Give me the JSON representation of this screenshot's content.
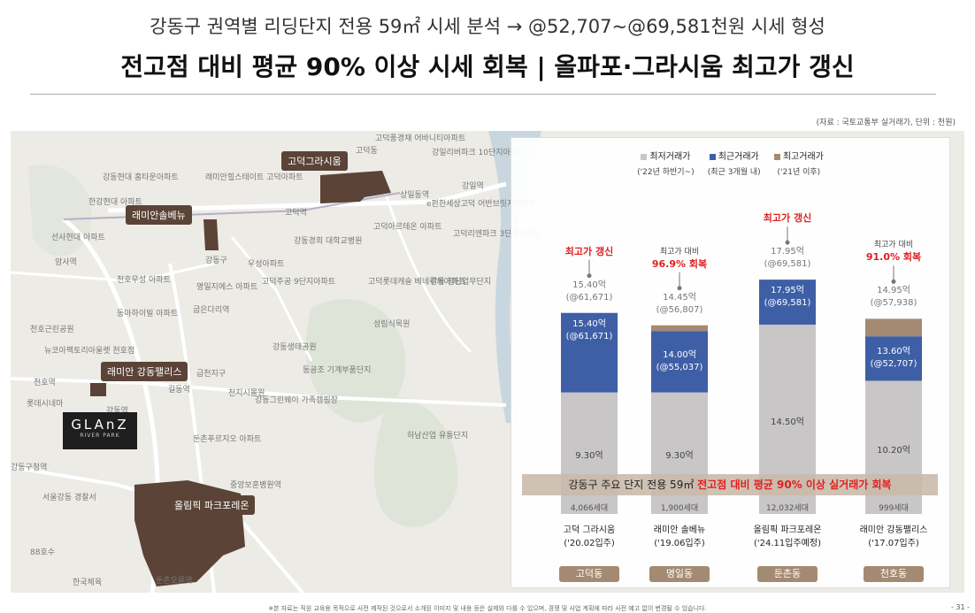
{
  "header": {
    "subtitle": "강동구 권역별 리딩단지 전용 59㎡ 시세 분석 → @52,707~@69,581천원 시세 형성",
    "title": "전고점 대비 평균 90% 이상 시세 회복 | 올파포·그라시움 최고가 갱신"
  },
  "source": "(자료 : 국토교통부 실거래가, 단위 : 천원)",
  "map": {
    "tags": [
      "고덕그라시움",
      "래미안솔베뉴",
      "래미안 강동팰리스",
      "올림픽 파크포레온"
    ],
    "logo": {
      "name": "GLAnZ",
      "sub": "RIVER PARK"
    },
    "place_labels": [
      "고덕동",
      "고덕풍경채 어바니티아파트",
      "강일리버파크 10단지아파트",
      "래미안힐스테이트 고덕아파트",
      "강동현대 홈타운아파트",
      "한강현대 아파트",
      "고덕역",
      "상일동역",
      "강일역",
      "e편한세상고덕 어반브릿지아파트",
      "고덕아르테온 아파트",
      "고덕리엔파크 3단지아파트",
      "선사현대 아파트",
      "암사역",
      "강동구",
      "우성아파트",
      "강동경희 대학교병원",
      "천호우성 아파트",
      "명일지에스 아파트",
      "고덕주공 9단지아파트",
      "고덕롯데캐슬 베네루체아파트",
      "강동 첨단업무단지",
      "동아하이빌 아파트",
      "굽은다리역",
      "천호근린공원",
      "성림식목원",
      "뉴코아팩토리아울렛 천호점",
      "강동생태공원",
      "천호역",
      "급천지구",
      "천지시몰원",
      "동공조 기계부품단지",
      "롯데시네마",
      "강동역",
      "길동역",
      "강동그린웨이 가족캠핑장",
      "둔촌푸르지오 아파트",
      "하남산업 유통단지",
      "강동구청역",
      "중앙보훈병원역",
      "서울강동 경찰서",
      "88호수",
      "한국체육",
      "둔촌오륜역"
    ],
    "colors": {
      "tag": "#5b4337",
      "block": "#5b4337",
      "river": "#c8d7df"
    }
  },
  "chart_data": {
    "type": "bar",
    "stacked": true,
    "unit": "억",
    "legend": [
      {
        "name": "최저거래가",
        "period": "('22년 하반기~)",
        "color": "#c8c6c6"
      },
      {
        "name": "최근거래가",
        "period": "(최근 3개월 내)",
        "color": "#3e5fa6"
      },
      {
        "name": "최고거래가",
        "period": "('21년 이후)",
        "color": "#a48a72"
      }
    ],
    "categories": [
      "고덕 그라시움",
      "래미안 솔베뉴",
      "올림픽 파크포레온",
      "래미안 강동팰리스"
    ],
    "category_labels": [
      {
        "name": "고덕 그라시움",
        "move_in": "('20.02입주)",
        "dong": "고덕동",
        "households": "4,066세대"
      },
      {
        "name": "래미안 솔베뉴",
        "move_in": "('19.06입주)",
        "dong": "명일동",
        "households": "1,900세대"
      },
      {
        "name": "올림픽 파크포레온",
        "move_in": "('24.11입주예정)",
        "dong": "둔촌동",
        "households": "12,032세대"
      },
      {
        "name": "래미안 강동팰리스",
        "move_in": "('17.07입주)",
        "dong": "천호동",
        "households": "999세대"
      }
    ],
    "lowest": [
      9.3,
      9.3,
      14.5,
      10.2
    ],
    "recent": [
      15.4,
      14.0,
      17.95,
      13.6
    ],
    "highest": [
      15.4,
      14.45,
      17.95,
      14.95
    ],
    "lowest_labels": [
      "9.30억",
      "9.30억",
      "14.50억",
      "10.20억"
    ],
    "recent_labels": [
      {
        "price": "15.40억",
        "per": "(@61,671)"
      },
      {
        "price": "14.00억",
        "per": "(@55,037)"
      },
      {
        "price": "17.95억",
        "per": "(@69,581)"
      },
      {
        "price": "13.60억",
        "per": "(@52,707)"
      }
    ],
    "highest_labels": [
      {
        "price": "15.40억",
        "per": "(@61,671)"
      },
      {
        "price": "14.45억",
        "per": "(@56,807)"
      },
      {
        "price": "17.95억",
        "per": "(@69,581)"
      },
      {
        "price": "14.95억",
        "per": "(@57,938)"
      }
    ],
    "callouts": [
      {
        "top": "",
        "main": "최고가 갱신"
      },
      {
        "top": "최고가 대비",
        "main": "96.9% 회복"
      },
      {
        "top": "",
        "main": "최고가 갱신"
      },
      {
        "top": "최고가 대비",
        "main": "91.0% 회복"
      }
    ],
    "banner": {
      "prefix": "강동구 주요 단지 전용 59㎡",
      "highlight": "전고점 대비 평균 90% 이상 실거래가 회복"
    },
    "ylim": [
      0,
      18.5
    ]
  },
  "footer": "※본 자료는 직원 교육용 목적으로 사전 제작된 것으로서 소개된 이미지 및 내용 등은 실제와 다를 수 있으며, 경쟁 및 사업 계획에 따라 사전 예고 없이 변경될 수 있습니다.",
  "page_number": "- 31 -"
}
